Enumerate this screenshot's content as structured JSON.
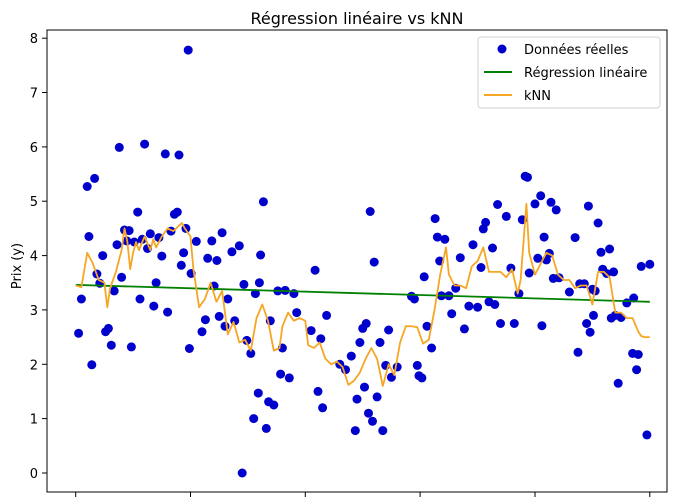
{
  "chart_data": {
    "type": "scatter",
    "title": "Régression linéaire vs kNN",
    "xlabel": "",
    "ylabel": "Prix (y)",
    "xlim": [
      -0.5,
      10.3
    ],
    "ylim": [
      -0.35,
      8.15
    ],
    "yticks": [
      0,
      1,
      2,
      3,
      4,
      5,
      6,
      7,
      8
    ],
    "xticks": [
      0,
      2,
      4,
      6,
      8,
      10
    ],
    "grid": false,
    "legend_position": "top-right",
    "colors": {
      "scatter": "#0000cd",
      "linear": "#008000",
      "knn": "#f5a623"
    },
    "series": [
      {
        "name": "Données réelles",
        "kind": "scatter",
        "points": [
          [
            0.05,
            2.57
          ],
          [
            0.1,
            3.2
          ],
          [
            0.2,
            5.27
          ],
          [
            0.23,
            4.35
          ],
          [
            0.28,
            1.99
          ],
          [
            0.33,
            5.42
          ],
          [
            0.37,
            3.66
          ],
          [
            0.42,
            3.49
          ],
          [
            0.47,
            4.0
          ],
          [
            0.52,
            2.6
          ],
          [
            0.57,
            2.66
          ],
          [
            0.62,
            2.35
          ],
          [
            0.67,
            3.35
          ],
          [
            0.72,
            4.2
          ],
          [
            0.76,
            5.99
          ],
          [
            0.8,
            3.6
          ],
          [
            0.85,
            4.47
          ],
          [
            0.89,
            4.27
          ],
          [
            0.93,
            4.46
          ],
          [
            0.97,
            2.32
          ],
          [
            1.02,
            4.25
          ],
          [
            1.08,
            4.8
          ],
          [
            1.12,
            3.2
          ],
          [
            1.16,
            4.3
          ],
          [
            1.2,
            6.05
          ],
          [
            1.25,
            4.13
          ],
          [
            1.3,
            4.4
          ],
          [
            1.36,
            3.07
          ],
          [
            1.4,
            3.5
          ],
          [
            1.45,
            4.33
          ],
          [
            1.5,
            3.99
          ],
          [
            1.56,
            5.87
          ],
          [
            1.6,
            2.96
          ],
          [
            1.66,
            4.45
          ],
          [
            1.72,
            4.76
          ],
          [
            1.77,
            4.8
          ],
          [
            1.8,
            5.85
          ],
          [
            1.84,
            3.82
          ],
          [
            1.88,
            4.05
          ],
          [
            1.92,
            4.5
          ],
          [
            1.96,
            7.78
          ],
          [
            1.98,
            2.29
          ],
          [
            2.01,
            3.67
          ],
          [
            2.1,
            4.26
          ],
          [
            2.2,
            2.6
          ],
          [
            2.26,
            2.82
          ],
          [
            2.3,
            3.95
          ],
          [
            2.37,
            4.27
          ],
          [
            2.41,
            3.44
          ],
          [
            2.46,
            3.91
          ],
          [
            2.5,
            2.88
          ],
          [
            2.55,
            4.42
          ],
          [
            2.6,
            2.7
          ],
          [
            2.65,
            3.2
          ],
          [
            2.72,
            4.07
          ],
          [
            2.77,
            2.8
          ],
          [
            2.85,
            4.18
          ],
          [
            2.9,
            0.0
          ],
          [
            2.93,
            3.47
          ],
          [
            2.98,
            2.44
          ],
          [
            3.05,
            2.2
          ],
          [
            3.1,
            1.0
          ],
          [
            3.13,
            3.3
          ],
          [
            3.18,
            1.47
          ],
          [
            3.2,
            3.5
          ],
          [
            3.22,
            4.01
          ],
          [
            3.27,
            4.99
          ],
          [
            3.32,
            0.82
          ],
          [
            3.36,
            1.31
          ],
          [
            3.39,
            2.8
          ],
          [
            3.45,
            1.25
          ],
          [
            3.52,
            3.35
          ],
          [
            3.57,
            1.82
          ],
          [
            3.6,
            2.3
          ],
          [
            3.65,
            3.36
          ],
          [
            3.72,
            1.75
          ],
          [
            3.8,
            3.3
          ],
          [
            3.85,
            2.95
          ],
          [
            4.1,
            2.62
          ],
          [
            4.17,
            3.73
          ],
          [
            4.22,
            1.5
          ],
          [
            4.27,
            2.47
          ],
          [
            4.3,
            1.2
          ],
          [
            4.37,
            2.9
          ],
          [
            4.6,
            2.0
          ],
          [
            4.7,
            1.9
          ],
          [
            4.8,
            2.15
          ],
          [
            4.87,
            0.78
          ],
          [
            4.9,
            1.36
          ],
          [
            4.95,
            2.4
          ],
          [
            5.0,
            2.66
          ],
          [
            5.03,
            1.58
          ],
          [
            5.06,
            2.75
          ],
          [
            5.1,
            1.1
          ],
          [
            5.13,
            4.81
          ],
          [
            5.17,
            0.95
          ],
          [
            5.2,
            3.88
          ],
          [
            5.25,
            1.4
          ],
          [
            5.3,
            2.4
          ],
          [
            5.35,
            0.78
          ],
          [
            5.4,
            1.98
          ],
          [
            5.45,
            2.63
          ],
          [
            5.5,
            1.76
          ],
          [
            5.6,
            1.95
          ],
          [
            5.85,
            3.25
          ],
          [
            5.9,
            3.2
          ],
          [
            5.95,
            1.98
          ],
          [
            5.98,
            1.79
          ],
          [
            6.03,
            1.75
          ],
          [
            6.07,
            3.61
          ],
          [
            6.12,
            2.7
          ],
          [
            6.2,
            2.3
          ],
          [
            6.26,
            4.68
          ],
          [
            6.3,
            4.34
          ],
          [
            6.34,
            3.9
          ],
          [
            6.37,
            3.26
          ],
          [
            6.43,
            4.3
          ],
          [
            6.5,
            3.26
          ],
          [
            6.55,
            2.93
          ],
          [
            6.62,
            3.4
          ],
          [
            6.7,
            3.96
          ],
          [
            6.77,
            2.65
          ],
          [
            6.85,
            3.07
          ],
          [
            6.92,
            4.2
          ],
          [
            7.0,
            3.05
          ],
          [
            7.06,
            3.78
          ],
          [
            7.1,
            4.49
          ],
          [
            7.14,
            4.61
          ],
          [
            7.2,
            3.15
          ],
          [
            7.26,
            4.14
          ],
          [
            7.3,
            3.1
          ],
          [
            7.35,
            4.94
          ],
          [
            7.4,
            2.75
          ],
          [
            7.5,
            4.72
          ],
          [
            7.58,
            3.77
          ],
          [
            7.64,
            2.75
          ],
          [
            7.72,
            3.3
          ],
          [
            7.78,
            4.66
          ],
          [
            7.83,
            5.46
          ],
          [
            7.87,
            5.44
          ],
          [
            7.9,
            3.68
          ],
          [
            8.0,
            4.95
          ],
          [
            8.05,
            3.95
          ],
          [
            8.1,
            5.1
          ],
          [
            8.12,
            2.71
          ],
          [
            8.16,
            4.34
          ],
          [
            8.2,
            3.92
          ],
          [
            8.25,
            4.04
          ],
          [
            8.28,
            4.98
          ],
          [
            8.32,
            3.58
          ],
          [
            8.37,
            4.84
          ],
          [
            8.42,
            3.59
          ],
          [
            8.6,
            3.33
          ],
          [
            8.7,
            4.33
          ],
          [
            8.75,
            2.22
          ],
          [
            8.78,
            3.48
          ],
          [
            8.86,
            3.48
          ],
          [
            8.9,
            2.75
          ],
          [
            8.93,
            4.91
          ],
          [
            8.96,
            2.59
          ],
          [
            9.0,
            3.38
          ],
          [
            9.02,
            2.9
          ],
          [
            9.05,
            3.35
          ],
          [
            9.1,
            4.6
          ],
          [
            9.15,
            4.06
          ],
          [
            9.18,
            3.75
          ],
          [
            9.25,
            3.67
          ],
          [
            9.3,
            4.12
          ],
          [
            9.33,
            2.85
          ],
          [
            9.37,
            3.7
          ],
          [
            9.4,
            2.9
          ],
          [
            9.45,
            1.65
          ],
          [
            9.5,
            2.86
          ],
          [
            9.6,
            3.13
          ],
          [
            9.7,
            2.2
          ],
          [
            9.72,
            3.22
          ],
          [
            9.8,
            2.18
          ],
          [
            9.77,
            1.9
          ],
          [
            9.85,
            3.8
          ],
          [
            9.95,
            0.7
          ],
          [
            10.0,
            3.84
          ]
        ]
      },
      {
        "name": "Régression linéaire",
        "kind": "line",
        "points": [
          [
            0.0,
            3.46
          ],
          [
            10.0,
            3.15
          ]
        ]
      },
      {
        "name": "kNN",
        "kind": "line",
        "points": [
          [
            0.0,
            3.45
          ],
          [
            0.1,
            3.42
          ],
          [
            0.2,
            4.05
          ],
          [
            0.3,
            3.85
          ],
          [
            0.4,
            3.55
          ],
          [
            0.5,
            3.5
          ],
          [
            0.55,
            3.05
          ],
          [
            0.6,
            3.4
          ],
          [
            0.7,
            3.7
          ],
          [
            0.8,
            4.1
          ],
          [
            0.85,
            4.5
          ],
          [
            0.9,
            4.25
          ],
          [
            0.95,
            3.75
          ],
          [
            1.0,
            4.05
          ],
          [
            1.05,
            4.25
          ],
          [
            1.1,
            4.1
          ],
          [
            1.2,
            4.35
          ],
          [
            1.3,
            4.1
          ],
          [
            1.35,
            4.3
          ],
          [
            1.4,
            4.15
          ],
          [
            1.5,
            4.35
          ],
          [
            1.6,
            4.5
          ],
          [
            1.7,
            4.45
          ],
          [
            1.8,
            4.55
          ],
          [
            1.85,
            4.6
          ],
          [
            1.9,
            4.5
          ],
          [
            2.0,
            4.35
          ],
          [
            2.05,
            3.75
          ],
          [
            2.15,
            3.05
          ],
          [
            2.25,
            3.2
          ],
          [
            2.35,
            3.5
          ],
          [
            2.45,
            3.15
          ],
          [
            2.55,
            3.35
          ],
          [
            2.65,
            2.55
          ],
          [
            2.75,
            2.78
          ],
          [
            2.85,
            2.4
          ],
          [
            2.95,
            2.45
          ],
          [
            3.05,
            2.25
          ],
          [
            3.15,
            2.85
          ],
          [
            3.25,
            3.1
          ],
          [
            3.35,
            2.8
          ],
          [
            3.45,
            2.25
          ],
          [
            3.55,
            2.3
          ],
          [
            3.6,
            2.7
          ],
          [
            3.7,
            2.95
          ],
          [
            3.8,
            2.8
          ],
          [
            3.9,
            2.85
          ],
          [
            4.0,
            2.8
          ],
          [
            4.05,
            2.35
          ],
          [
            4.15,
            2.3
          ],
          [
            4.25,
            2.4
          ],
          [
            4.35,
            2.1
          ],
          [
            4.45,
            2.0
          ],
          [
            4.55,
            2.05
          ],
          [
            4.65,
            1.95
          ],
          [
            4.75,
            1.62
          ],
          [
            4.85,
            1.7
          ],
          [
            4.95,
            1.85
          ],
          [
            5.05,
            2.1
          ],
          [
            5.15,
            2.3
          ],
          [
            5.25,
            2.1
          ],
          [
            5.35,
            1.6
          ],
          [
            5.45,
            2.0
          ],
          [
            5.55,
            1.8
          ],
          [
            5.65,
            2.4
          ],
          [
            5.75,
            2.7
          ],
          [
            5.85,
            2.7
          ],
          [
            5.95,
            2.68
          ],
          [
            6.05,
            2.38
          ],
          [
            6.15,
            2.45
          ],
          [
            6.25,
            3.0
          ],
          [
            6.35,
            3.65
          ],
          [
            6.45,
            4.15
          ],
          [
            6.5,
            3.65
          ],
          [
            6.6,
            3.45
          ],
          [
            6.7,
            3.45
          ],
          [
            6.8,
            3.4
          ],
          [
            6.9,
            3.8
          ],
          [
            7.0,
            3.9
          ],
          [
            7.1,
            4.15
          ],
          [
            7.2,
            3.7
          ],
          [
            7.3,
            3.7
          ],
          [
            7.4,
            3.7
          ],
          [
            7.5,
            3.6
          ],
          [
            7.6,
            3.75
          ],
          [
            7.7,
            3.3
          ],
          [
            7.75,
            3.55
          ],
          [
            7.85,
            4.95
          ],
          [
            7.9,
            4.05
          ],
          [
            8.0,
            3.65
          ],
          [
            8.1,
            3.85
          ],
          [
            8.2,
            4.05
          ],
          [
            8.3,
            4.0
          ],
          [
            8.4,
            3.65
          ],
          [
            8.5,
            3.55
          ],
          [
            8.6,
            3.55
          ],
          [
            8.7,
            3.4
          ],
          [
            8.8,
            3.45
          ],
          [
            8.9,
            3.45
          ],
          [
            9.0,
            3.1
          ],
          [
            9.1,
            3.7
          ],
          [
            9.2,
            3.7
          ],
          [
            9.3,
            3.6
          ],
          [
            9.4,
            2.95
          ],
          [
            9.5,
            2.95
          ],
          [
            9.6,
            2.85
          ],
          [
            9.7,
            2.85
          ],
          [
            9.8,
            2.6
          ],
          [
            9.85,
            2.52
          ],
          [
            9.9,
            2.5
          ],
          [
            10.0,
            2.5
          ]
        ]
      }
    ]
  }
}
